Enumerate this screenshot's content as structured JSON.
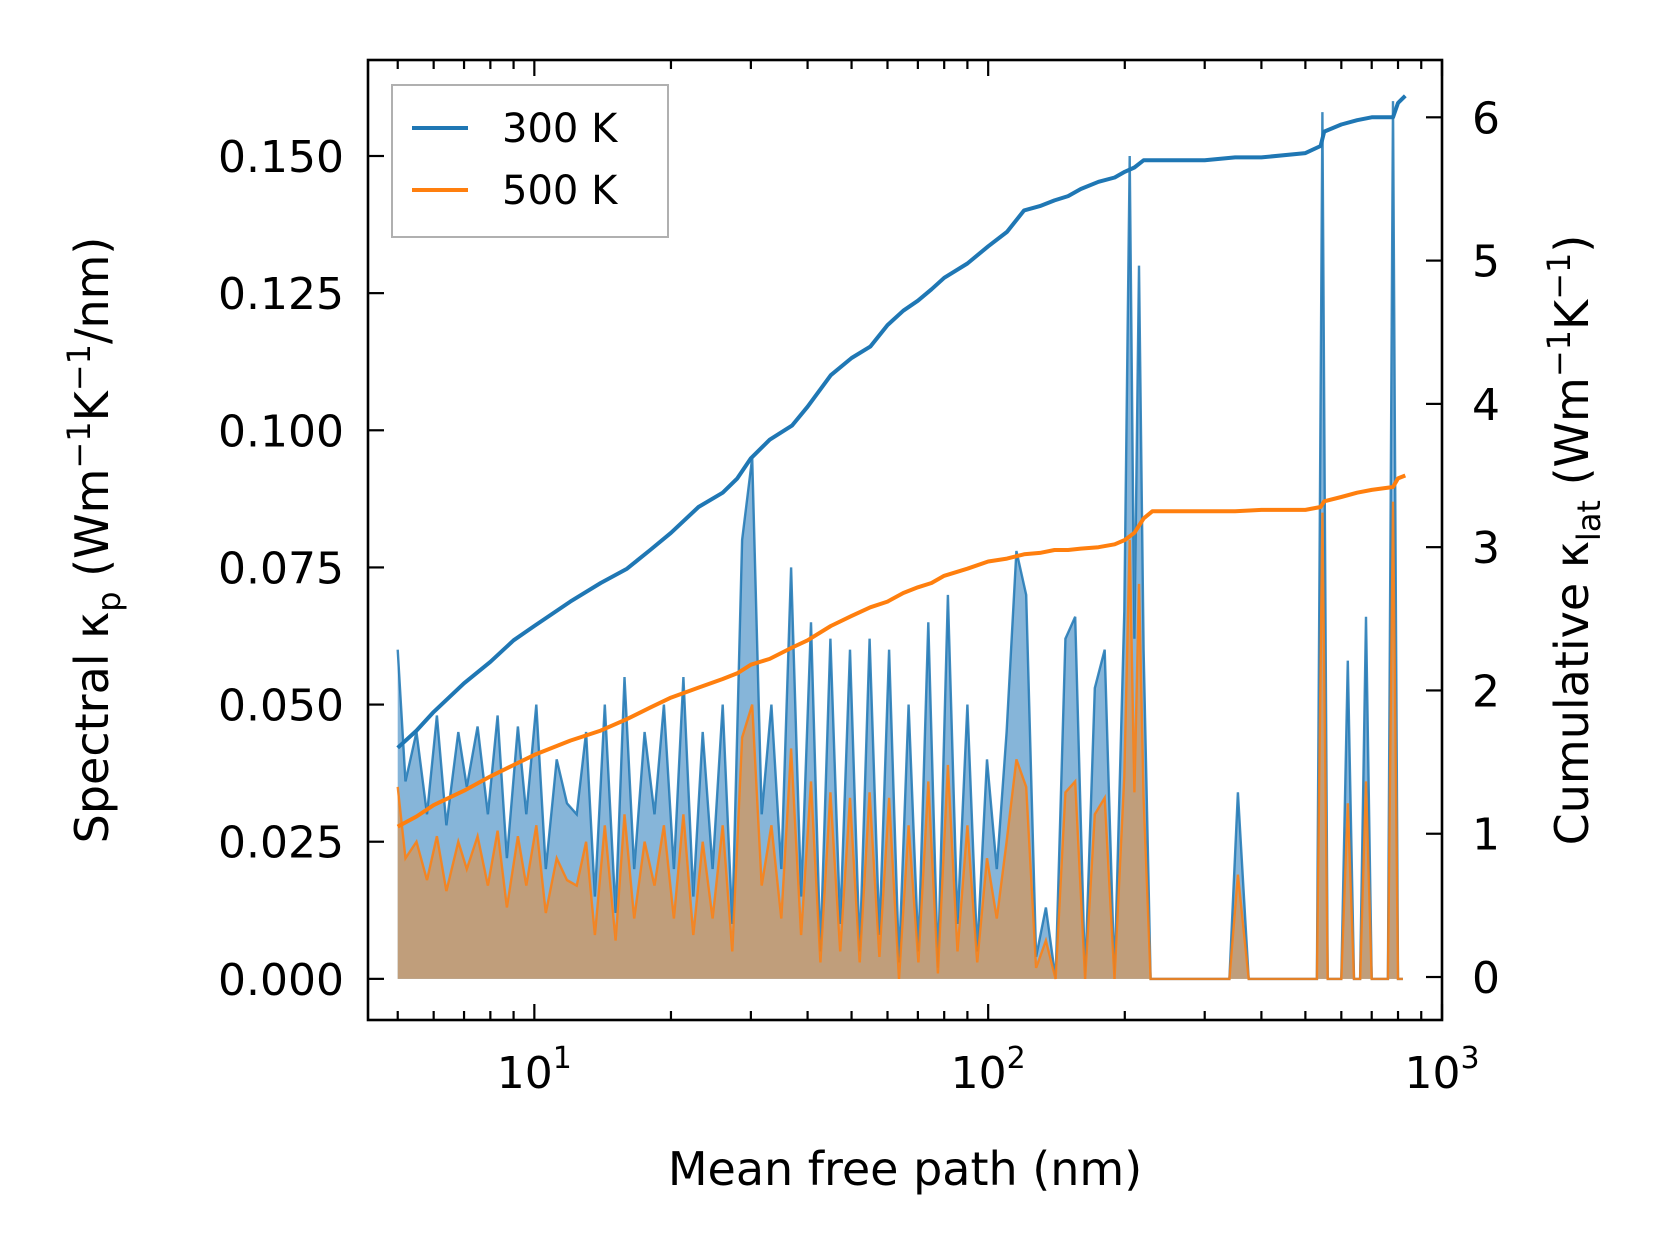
{
  "chart_data": {
    "type": "line",
    "xlabel": "Mean free path (nm)",
    "ylabel_left": {
      "main": "Spectral κ",
      "sub": "p",
      "unit_pre": " (Wm",
      "sup1": "−1",
      "unit_mid": "K",
      "sup2": "−1",
      "unit_post": "/nm)"
    },
    "ylabel_right": {
      "main": "Cumulative κ",
      "sub": "lat",
      "unit_pre": " (Wm",
      "sup1": "−1",
      "unit_mid": "K",
      "sup2": "−1",
      "unit_post": ")"
    },
    "xscale": "log",
    "xlim": [
      4.3,
      1000
    ],
    "ylim_left": [
      -0.0075,
      0.1675
    ],
    "ylim_right": [
      -0.3,
      6.4
    ],
    "x_ticks": [
      {
        "v": 10,
        "base": "10",
        "exp": "1"
      },
      {
        "v": 100,
        "base": "10",
        "exp": "2"
      },
      {
        "v": 1000,
        "base": "10",
        "exp": "3"
      }
    ],
    "y_left_ticks": [
      0,
      0.025,
      0.05,
      0.075,
      0.1,
      0.125,
      0.15
    ],
    "y_left_tick_labels": [
      "0.000",
      "0.025",
      "0.050",
      "0.075",
      "0.100",
      "0.125",
      "0.150"
    ],
    "y_right_ticks": [
      0,
      1,
      2,
      3,
      4,
      5,
      6
    ],
    "y_right_tick_labels": [
      "0",
      "1",
      "2",
      "3",
      "4",
      "5",
      "6"
    ],
    "legend_position": "top-left",
    "legend": [
      "300 K",
      "500 K"
    ],
    "colors": {
      "300 K": "#1f77b4",
      "500 K": "#ff7f0e",
      "fill_300": "#7fb1d7",
      "fill_500": "#c69c73"
    },
    "spectral": [
      {
        "name": "300 K",
        "x": [
          5,
          5.2,
          5.5,
          5.8,
          6.1,
          6.4,
          6.8,
          7.1,
          7.5,
          7.9,
          8.3,
          8.7,
          9.2,
          9.6,
          10.1,
          10.6,
          11.2,
          11.8,
          12.4,
          13,
          13.6,
          14.3,
          15.1,
          15.8,
          16.6,
          17.5,
          18.4,
          19.3,
          20.3,
          21.3,
          22.4,
          23.5,
          24.7,
          26,
          27.3,
          28.7,
          30.2,
          31.7,
          33.3,
          35,
          36.8,
          38.7,
          40.7,
          42.7,
          44.9,
          47.2,
          49.6,
          52.1,
          54.8,
          57.6,
          60.5,
          63.6,
          66.8,
          70.2,
          73.8,
          77.5,
          81.5,
          85.6,
          90,
          94.6,
          99.4,
          104.5,
          109.8,
          115.4,
          121.3,
          127.5,
          134,
          140.8,
          148,
          155.5,
          163.5,
          171.8,
          180.6,
          189.8,
          199.5,
          205,
          210,
          215,
          220,
          228,
          340,
          355,
          375,
          530,
          545,
          560,
          575,
          600,
          620,
          640,
          660,
          680,
          700,
          720,
          740,
          760,
          780,
          800,
          820
        ],
        "values": [
          0.06,
          0.036,
          0.045,
          0.03,
          0.048,
          0.028,
          0.045,
          0.035,
          0.046,
          0.03,
          0.048,
          0.022,
          0.046,
          0.03,
          0.05,
          0.02,
          0.04,
          0.032,
          0.03,
          0.045,
          0.015,
          0.05,
          0.012,
          0.055,
          0.02,
          0.045,
          0.03,
          0.05,
          0.02,
          0.055,
          0.015,
          0.045,
          0.02,
          0.05,
          0.01,
          0.08,
          0.095,
          0.03,
          0.05,
          0.02,
          0.075,
          0.015,
          0.065,
          0.005,
          0.062,
          0.01,
          0.06,
          0.005,
          0.062,
          0.008,
          0.06,
          0.003,
          0.05,
          0.005,
          0.065,
          0.002,
          0.07,
          0.01,
          0.05,
          0.005,
          0.04,
          0.02,
          0.045,
          0.078,
          0.07,
          0.004,
          0.013,
          0,
          0.062,
          0.066,
          0,
          0.053,
          0.06,
          0,
          0.067,
          0.15,
          0.062,
          0.13,
          0.06,
          0,
          0,
          0.034,
          0,
          0,
          0.158,
          0,
          0,
          0,
          0.058,
          0,
          0,
          0.066,
          0,
          0,
          0,
          0,
          0.16,
          0,
          0
        ]
      },
      {
        "name": "500 K",
        "x": [
          5,
          5.2,
          5.5,
          5.8,
          6.1,
          6.4,
          6.8,
          7.1,
          7.5,
          7.9,
          8.3,
          8.7,
          9.2,
          9.6,
          10.1,
          10.6,
          11.2,
          11.8,
          12.4,
          13,
          13.6,
          14.3,
          15.1,
          15.8,
          16.6,
          17.5,
          18.4,
          19.3,
          20.3,
          21.3,
          22.4,
          23.5,
          24.7,
          26,
          27.3,
          28.7,
          30.2,
          31.7,
          33.3,
          35,
          36.8,
          38.7,
          40.7,
          42.7,
          44.9,
          47.2,
          49.6,
          52.1,
          54.8,
          57.6,
          60.5,
          63.6,
          66.8,
          70.2,
          73.8,
          77.5,
          81.5,
          85.6,
          90,
          94.6,
          99.4,
          104.5,
          109.8,
          115.4,
          121.3,
          127.5,
          134,
          140.8,
          148,
          155.5,
          163.5,
          171.8,
          180.6,
          189.8,
          199.5,
          205,
          210,
          215,
          220,
          228,
          340,
          355,
          375,
          530,
          545,
          560,
          575,
          600,
          620,
          640,
          660,
          680,
          700,
          720,
          740,
          760,
          780,
          800,
          820
        ],
        "values": [
          0.035,
          0.022,
          0.025,
          0.018,
          0.026,
          0.016,
          0.025,
          0.02,
          0.026,
          0.017,
          0.027,
          0.013,
          0.026,
          0.017,
          0.028,
          0.012,
          0.022,
          0.018,
          0.017,
          0.025,
          0.008,
          0.028,
          0.007,
          0.03,
          0.011,
          0.025,
          0.017,
          0.028,
          0.011,
          0.03,
          0.008,
          0.025,
          0.011,
          0.028,
          0.005,
          0.044,
          0.05,
          0.017,
          0.028,
          0.011,
          0.042,
          0.008,
          0.036,
          0.003,
          0.034,
          0.005,
          0.033,
          0.003,
          0.034,
          0.004,
          0.033,
          0.0,
          0.028,
          0.003,
          0.036,
          0.001,
          0.039,
          0.005,
          0.028,
          0.003,
          0.022,
          0.011,
          0.025,
          0.04,
          0.035,
          0.002,
          0.007,
          0,
          0.034,
          0.036,
          0,
          0.03,
          0.033,
          0,
          0.037,
          0.08,
          0.034,
          0.072,
          0.033,
          0,
          0,
          0.019,
          0,
          0,
          0.085,
          0,
          0,
          0,
          0.032,
          0,
          0,
          0.036,
          0,
          0,
          0,
          0,
          0.087,
          0,
          0
        ]
      }
    ],
    "cumulative": [
      {
        "name": "300 K",
        "x": [
          5,
          5.5,
          6,
          7,
          8,
          9,
          10,
          12,
          14,
          16,
          18,
          20,
          23,
          26,
          28,
          30,
          33,
          37,
          40,
          45,
          50,
          55,
          60,
          65,
          70,
          75,
          80,
          90,
          100,
          110,
          120,
          130,
          140,
          150,
          160,
          175,
          190,
          200,
          210,
          220,
          230,
          300,
          350,
          400,
          500,
          540,
          550,
          600,
          650,
          700,
          780,
          800,
          830
        ],
        "values": [
          1.6,
          1.72,
          1.85,
          2.05,
          2.2,
          2.35,
          2.45,
          2.62,
          2.75,
          2.85,
          2.98,
          3.1,
          3.28,
          3.38,
          3.48,
          3.62,
          3.75,
          3.85,
          3.98,
          4.2,
          4.32,
          4.4,
          4.55,
          4.65,
          4.72,
          4.8,
          4.88,
          4.98,
          5.1,
          5.2,
          5.35,
          5.38,
          5.42,
          5.45,
          5.5,
          5.55,
          5.58,
          5.62,
          5.65,
          5.7,
          5.7,
          5.7,
          5.72,
          5.72,
          5.75,
          5.8,
          5.9,
          5.95,
          5.98,
          6.0,
          6.0,
          6.1,
          6.15
        ]
      },
      {
        "name": "500 K",
        "x": [
          5,
          5.5,
          6,
          7,
          8,
          9,
          10,
          12,
          14,
          16,
          18,
          20,
          23,
          26,
          28,
          30,
          33,
          37,
          40,
          45,
          50,
          55,
          60,
          65,
          70,
          75,
          80,
          90,
          100,
          110,
          120,
          130,
          140,
          150,
          160,
          175,
          190,
          200,
          210,
          220,
          230,
          300,
          350,
          400,
          500,
          540,
          550,
          600,
          650,
          700,
          780,
          800,
          830
        ],
        "values": [
          1.05,
          1.12,
          1.2,
          1.3,
          1.4,
          1.48,
          1.55,
          1.65,
          1.72,
          1.8,
          1.88,
          1.95,
          2.02,
          2.08,
          2.12,
          2.18,
          2.22,
          2.3,
          2.35,
          2.45,
          2.52,
          2.58,
          2.62,
          2.68,
          2.72,
          2.75,
          2.8,
          2.85,
          2.9,
          2.92,
          2.95,
          2.96,
          2.98,
          2.98,
          2.99,
          3.0,
          3.02,
          3.05,
          3.1,
          3.2,
          3.25,
          3.25,
          3.25,
          3.26,
          3.26,
          3.28,
          3.32,
          3.35,
          3.38,
          3.4,
          3.42,
          3.48,
          3.5
        ]
      }
    ]
  }
}
